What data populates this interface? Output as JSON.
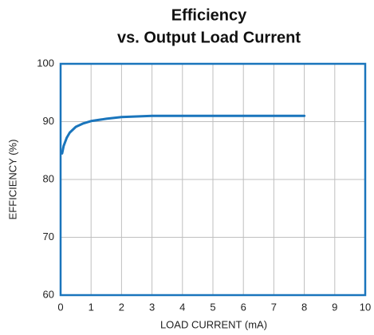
{
  "chart_data": {
    "type": "line",
    "title": [
      "Efficiency",
      "vs. Output Load Current"
    ],
    "x_label": "LOAD CURRENT (mA)",
    "y_label": "EFFICIENCY (%)",
    "series": [
      {
        "color": "#1a75bc",
        "x": [
          0.05,
          0.1,
          0.2,
          0.3,
          0.5,
          0.75,
          1,
          1.5,
          2,
          2.5,
          3,
          4,
          5,
          6,
          7,
          8
        ],
        "values": [
          84.5,
          85.8,
          87.2,
          88.1,
          89.1,
          89.7,
          90.1,
          90.5,
          90.8,
          90.9,
          91,
          91,
          91,
          91,
          91,
          91
        ]
      }
    ],
    "xlim": [
      0,
      10
    ],
    "xticks": [
      0,
      1,
      2,
      3,
      4,
      5,
      6,
      7,
      8,
      9,
      10
    ],
    "ylim": [
      60,
      100
    ],
    "yticks": [
      60,
      70,
      80,
      90,
      100
    ],
    "grid": true,
    "frame_color": "#1a75bc"
  }
}
